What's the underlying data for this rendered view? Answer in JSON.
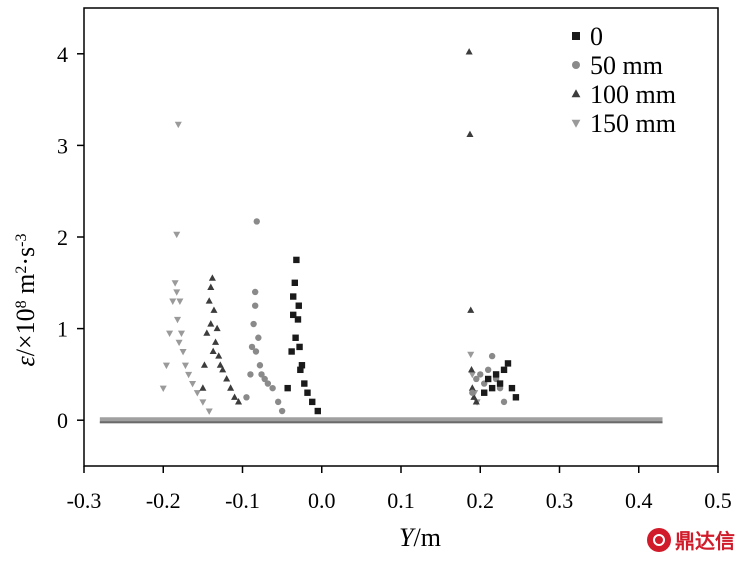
{
  "chart_data": {
    "type": "scatter",
    "title": "",
    "xlim": [
      -0.3,
      0.5
    ],
    "ylim": [
      -0.5,
      4.5
    ],
    "x_ticks": [
      -0.3,
      -0.2,
      -0.1,
      0.0,
      0.1,
      0.2,
      0.3,
      0.4,
      0.5
    ],
    "x_tick_labels": [
      "-0.3",
      "-0.2",
      "-0.1",
      "0.0",
      "0.1",
      "0.2",
      "0.3",
      "0.4",
      "0.5"
    ],
    "y_ticks": [
      0,
      1,
      2,
      3,
      4
    ],
    "y_tick_labels": [
      "0",
      "1",
      "2",
      "3",
      "4"
    ],
    "xlabel": {
      "symbol": "Y",
      "unit": "/m"
    },
    "ylabel": {
      "symbol": "ε",
      "prefix": "/×10",
      "exp": "8",
      "unit1": " m",
      "exp2": "2",
      "unit2": "·s",
      "exp3": "-3"
    },
    "grid": false,
    "legend_position": "top-right",
    "series": [
      {
        "name": "0",
        "marker": "square",
        "color": "#1a1a1a",
        "x": [
          -0.043,
          -0.038,
          -0.036,
          -0.034,
          -0.032,
          -0.03,
          -0.028,
          -0.025,
          -0.022,
          -0.018,
          -0.012,
          -0.005,
          -0.036,
          -0.029,
          -0.033,
          -0.027,
          0.205,
          0.21,
          0.215,
          0.22,
          0.225,
          0.23,
          0.235,
          0.24,
          0.245
        ],
        "y": [
          0.35,
          0.75,
          1.15,
          1.5,
          1.75,
          1.1,
          0.8,
          0.6,
          0.4,
          0.3,
          0.2,
          0.1,
          1.35,
          1.25,
          0.9,
          0.55,
          0.3,
          0.45,
          0.35,
          0.5,
          0.4,
          0.55,
          0.62,
          0.35,
          0.25
        ]
      },
      {
        "name": "50 mm",
        "marker": "circle",
        "color": "#8a8a8a",
        "x": [
          -0.095,
          -0.09,
          -0.088,
          -0.086,
          -0.084,
          -0.082,
          -0.08,
          -0.078,
          -0.076,
          -0.072,
          -0.068,
          -0.062,
          -0.055,
          -0.05,
          -0.084,
          -0.083,
          0.19,
          0.195,
          0.2,
          0.205,
          0.21,
          0.215,
          0.22,
          0.225,
          0.23
        ],
        "y": [
          0.25,
          0.5,
          0.8,
          1.05,
          1.4,
          2.17,
          0.9,
          0.6,
          0.5,
          0.45,
          0.4,
          0.35,
          0.2,
          0.1,
          1.25,
          0.75,
          0.3,
          0.45,
          0.5,
          0.4,
          0.55,
          0.7,
          0.45,
          0.35,
          0.2
        ]
      },
      {
        "name": "100 mm",
        "marker": "triangle-up",
        "color": "#3c3c3c",
        "x": [
          -0.15,
          -0.148,
          -0.145,
          -0.142,
          -0.14,
          -0.138,
          -0.136,
          -0.134,
          -0.132,
          -0.13,
          -0.128,
          -0.125,
          -0.12,
          -0.115,
          -0.11,
          -0.105,
          -0.14,
          -0.137,
          0.186,
          0.187,
          0.188,
          0.189,
          0.19,
          0.192,
          0.195
        ],
        "y": [
          0.35,
          0.6,
          0.95,
          1.3,
          1.45,
          1.55,
          1.2,
          0.85,
          1.0,
          0.7,
          0.6,
          0.55,
          0.45,
          0.35,
          0.25,
          0.2,
          1.05,
          0.75,
          4.02,
          3.12,
          1.2,
          0.55,
          0.35,
          0.25,
          0.2
        ]
      },
      {
        "name": "150 mm",
        "marker": "triangle-down",
        "color": "#9a9a9a",
        "x": [
          -0.2,
          -0.196,
          -0.192,
          -0.188,
          -0.185,
          -0.183,
          -0.181,
          -0.179,
          -0.177,
          -0.175,
          -0.172,
          -0.168,
          -0.163,
          -0.157,
          -0.15,
          -0.142,
          -0.183,
          -0.182,
          -0.18,
          0.188,
          0.19,
          0.193,
          0.196
        ],
        "y": [
          0.35,
          0.6,
          0.95,
          1.3,
          1.5,
          2.03,
          3.23,
          1.3,
          0.95,
          0.75,
          0.6,
          0.5,
          0.4,
          0.3,
          0.2,
          0.1,
          1.4,
          1.1,
          0.85,
          0.72,
          0.5,
          0.3,
          0.2
        ]
      }
    ],
    "baseline": {
      "x_start": -0.28,
      "x_end": 0.43,
      "y": 0.0
    }
  },
  "watermark": {
    "text": "鼎达信"
  }
}
